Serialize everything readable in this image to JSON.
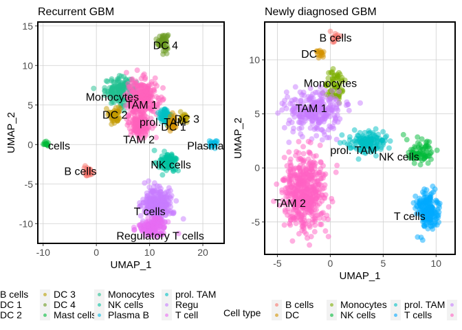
{
  "chart_data": [
    {
      "type": "scatter",
      "title": "Recurrent GBM",
      "xlabel": "UMAP_1",
      "ylabel": "UMAP_2",
      "xlim": [
        -11,
        24
      ],
      "ylim": [
        -12.5,
        15.5
      ],
      "xticks": [
        -10,
        0,
        10,
        20
      ],
      "yticks": [
        15,
        10,
        5,
        0,
        -5,
        -10
      ],
      "grid": true,
      "clusters": [
        {
          "label": "DC 4",
          "color": "#6a9a1f",
          "x": 12.5,
          "y": 13,
          "sx": 0.9,
          "sy": 1.0,
          "n": 60
        },
        {
          "label": "Monocytes",
          "color": "#1fbf8f",
          "x": 4.5,
          "y": 6.8,
          "sx": 2.6,
          "sy": 1.5,
          "n": 160
        },
        {
          "label": "TAM 1",
          "color": "#ff62bc",
          "x": 8.5,
          "y": 5.8,
          "sx": 2.7,
          "sy": 2.2,
          "n": 260
        },
        {
          "label": "DC 2",
          "color": "#c49a00",
          "x": 3.5,
          "y": 3.8,
          "sx": 1.0,
          "sy": 1.0,
          "n": 50
        },
        {
          "label": "TAM 2",
          "color": "#ff62bc",
          "x": 8,
          "y": 2.5,
          "sx": 2.0,
          "sy": 1.4,
          "n": 120
        },
        {
          "label": "prol. TAM",
          "color": "#00bfc4",
          "x": 13,
          "y": 3.6,
          "sx": 1.2,
          "sy": 1.0,
          "n": 60
        },
        {
          "label": "DC 1",
          "color": "#d39200",
          "x": 14.3,
          "y": 2.6,
          "sx": 0.8,
          "sy": 0.8,
          "n": 30
        },
        {
          "label": "DC 3",
          "color": "#b79f00",
          "x": 16.5,
          "y": 3.3,
          "sx": 0.7,
          "sy": 0.7,
          "n": 25
        },
        {
          "label": "Mast cells",
          "color": "#00ba38",
          "x": -9.5,
          "y": 0,
          "sx": 0.5,
          "sy": 0.4,
          "n": 12
        },
        {
          "label": "Plasma B",
          "color": "#00b9e3",
          "x": 22,
          "y": 0,
          "sx": 0.8,
          "sy": 0.5,
          "n": 20
        },
        {
          "label": "NK cells",
          "color": "#00c19f",
          "x": 13.5,
          "y": -2.2,
          "sx": 1.5,
          "sy": 1.0,
          "n": 90
        },
        {
          "label": "B cells",
          "color": "#f8766d",
          "x": -1.5,
          "y": -3.5,
          "sx": 0.7,
          "sy": 0.5,
          "n": 30
        },
        {
          "label": "T cells",
          "color": "#c77cff",
          "x": 11.5,
          "y": -7.5,
          "sx": 2.6,
          "sy": 2.0,
          "n": 260
        },
        {
          "label": "Regulatory T cells",
          "color": "#e76bf3",
          "x": 10.5,
          "y": -10.5,
          "sx": 2.5,
          "sy": 1.0,
          "n": 140
        }
      ],
      "cluster_labels": [
        {
          "text": "DC 4",
          "x": 13,
          "y": 12.5
        },
        {
          "text": "Monocytes",
          "x": 3,
          "y": 6
        },
        {
          "text": "TAM 1",
          "x": 8.5,
          "y": 5
        },
        {
          "text": "DC 2",
          "x": 3.5,
          "y": 3.7
        },
        {
          "text": "prol. TAM",
          "x": 12.5,
          "y": 2.8
        },
        {
          "text": "DC 3",
          "x": 17,
          "y": 3.2
        },
        {
          "text": "DC 1",
          "x": 14.5,
          "y": 2.2
        },
        {
          "text": "TAM 2",
          "x": 8,
          "y": 0.6
        },
        {
          "text": "Plasma",
          "x": 20.5,
          "y": -0.2
        },
        {
          "text": "cells",
          "x": -7,
          "y": -0.2
        },
        {
          "text": "NK cells",
          "x": 14,
          "y": -2.6
        },
        {
          "text": "B cells",
          "x": -3,
          "y": -3.4
        },
        {
          "text": "T cells",
          "x": 10,
          "y": -8.5
        },
        {
          "text": "Regulatory T cells",
          "x": 12,
          "y": -11.6
        }
      ]
    },
    {
      "type": "scatter",
      "title": "Newly diagnosed GBM",
      "xlabel": "UMAP_1",
      "ylabel": "UMAP_2",
      "xlim": [
        -6.2,
        11.8
      ],
      "ylim": [
        -8,
        13.5
      ],
      "xticks": [
        -5,
        0,
        5,
        10
      ],
      "yticks": [
        10,
        5,
        0,
        -5
      ],
      "grid": true,
      "clusters": [
        {
          "label": "B cells",
          "color": "#f8766d",
          "x": 0.5,
          "y": 12,
          "sx": 0.4,
          "sy": 0.4,
          "n": 15
        },
        {
          "label": "DC",
          "color": "#d39200",
          "x": -1,
          "y": 10.5,
          "sx": 0.4,
          "sy": 0.5,
          "n": 15
        },
        {
          "label": "Monocytes",
          "color": "#7cae00",
          "x": 0.5,
          "y": 7.5,
          "sx": 0.8,
          "sy": 1.3,
          "n": 70
        },
        {
          "label": "TAM 1",
          "color": "#c77cff",
          "x": -1.5,
          "y": 5.2,
          "sx": 2.4,
          "sy": 1.8,
          "n": 260
        },
        {
          "label": "prol. TAM",
          "color": "#00bfc4",
          "x": 3.5,
          "y": 2.3,
          "sx": 1.6,
          "sy": 1.0,
          "n": 140
        },
        {
          "label": "NK cells",
          "color": "#00ba38",
          "x": 8.5,
          "y": 1.5,
          "sx": 1.1,
          "sy": 1.0,
          "n": 70
        },
        {
          "label": "T cells",
          "color": "#00a9ff",
          "x": 9.2,
          "y": -4,
          "sx": 1.0,
          "sy": 1.7,
          "n": 180
        },
        {
          "label": "TAM 2",
          "color": "#ff61c3",
          "x": -2.5,
          "y": -2.2,
          "sx": 2.0,
          "sy": 3.2,
          "n": 500
        }
      ],
      "cluster_labels": [
        {
          "text": "B cells",
          "x": 0.5,
          "y": 12
        },
        {
          "text": "DC",
          "x": -2,
          "y": 10.5
        },
        {
          "text": "Monocytes",
          "x": 0,
          "y": 7.8
        },
        {
          "text": "TAM 1",
          "x": -1.8,
          "y": 5.5
        },
        {
          "text": "prol. TAM",
          "x": 2.2,
          "y": 1.6
        },
        {
          "text": "NK cells",
          "x": 6.5,
          "y": 1
        },
        {
          "text": "TAM 2",
          "x": -3.8,
          "y": -3.3
        },
        {
          "text": "T cells",
          "x": 7.5,
          "y": -4.5
        }
      ]
    }
  ],
  "legend_left": {
    "title": "",
    "columns": [
      [
        {
          "label": "B cells",
          "color": "#f8766d"
        },
        {
          "label": "DC 1",
          "color": "#d39200"
        },
        {
          "label": "DC 2",
          "color": "#c49a00"
        }
      ],
      [
        {
          "label": "DC 3",
          "color": "#b79f00"
        },
        {
          "label": "DC 4",
          "color": "#6a9a1f"
        },
        {
          "label": "Mast cells",
          "color": "#00ba38"
        }
      ],
      [
        {
          "label": "Monocytes",
          "color": "#1fbf8f"
        },
        {
          "label": "NK cells",
          "color": "#00c19f"
        },
        {
          "label": "Plasma B",
          "color": "#00b9e3"
        }
      ],
      [
        {
          "label": "prol. TAM",
          "color": "#00bfc4"
        },
        {
          "label": "Regu",
          "color": "#c77cff"
        },
        {
          "label": "T cell",
          "color": "#e76bf3"
        }
      ]
    ]
  },
  "legend_right": {
    "title": "Cell type",
    "columns": [
      [
        {
          "label": "B cells",
          "color": "#f8766d"
        },
        {
          "label": "DC",
          "color": "#d39200"
        }
      ],
      [
        {
          "label": "Monocytes",
          "color": "#7cae00"
        },
        {
          "label": "NK cells",
          "color": "#00ba38"
        }
      ],
      [
        {
          "label": "prol. TAM",
          "color": "#00bfc4"
        },
        {
          "label": "T cells",
          "color": "#00a9ff"
        }
      ],
      [
        {
          "label": "",
          "color": "#c77cff"
        },
        {
          "label": "",
          "color": "#ff61c3"
        }
      ]
    ]
  }
}
